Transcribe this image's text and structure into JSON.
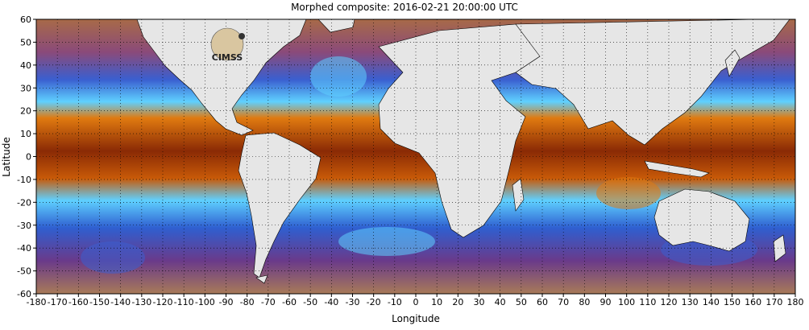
{
  "title": "Morphed composite: 2016-02-21 20:00:00 UTC",
  "x_axis": {
    "label": "Longitude",
    "range": [
      -180,
      180
    ],
    "ticks": [
      -180,
      -170,
      -160,
      -150,
      -140,
      -130,
      -120,
      -110,
      -100,
      -90,
      -80,
      -70,
      -60,
      -50,
      -40,
      -30,
      -20,
      -10,
      0,
      10,
      20,
      30,
      40,
      50,
      60,
      70,
      80,
      90,
      100,
      110,
      120,
      130,
      140,
      150,
      160,
      170,
      180
    ]
  },
  "y_axis": {
    "label": "Latitude",
    "range": [
      -60,
      60
    ],
    "ticks": [
      60,
      50,
      40,
      30,
      20,
      10,
      0,
      -10,
      -20,
      -30,
      -40,
      -50,
      -60
    ]
  },
  "grid": "dotted",
  "logo": {
    "text": "CIMSS"
  },
  "colors": {
    "land": "#e6e6e6",
    "very_dry": "#a06a4a",
    "dry": "#7a3a8a",
    "moist": "#2f5fd0",
    "wet": "#4fc8ff",
    "very_wet": "#e07a10",
    "saturated": "#8a2a05"
  }
}
